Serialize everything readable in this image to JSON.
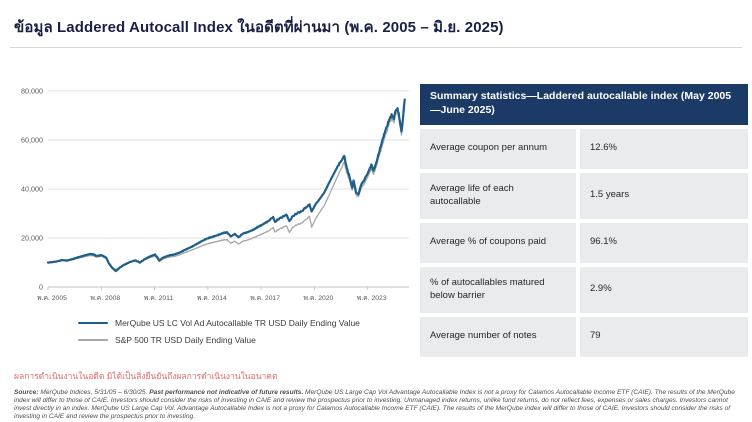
{
  "page": {
    "title": "ข้อมูล Laddered Autocall Index ในอดีตที่ผ่านมา (พ.ค. 2005 – มิ.ย. 2025)",
    "performance_note": "ผลการดำเนินงานในอดีต มิได้เป็นสิ่งยืนยันถึงผลการดำเนินงานในอนาคต"
  },
  "summary_table": {
    "header": "Summary statistics—Laddered autocallable index (May 2005 —June 2025)",
    "header_bg": "#1b3a66",
    "row_bg": "#eaebec",
    "rows": [
      {
        "label": "Average coupon per annum",
        "value": "12.6%"
      },
      {
        "label": "Average life of each autocallable",
        "value": "1.5 years"
      },
      {
        "label": "Average % of coupons paid",
        "value": "96.1%"
      },
      {
        "label": "% of autocallables matured below barrier",
        "value": "2.9%"
      },
      {
        "label": "Average number of notes",
        "value": "79"
      }
    ]
  },
  "disclaimer": {
    "source_label": "Source:",
    "source_text": " MerQube Indices, 5/31/05 – 6/30/25. ",
    "bold_statement": "Past performance not indicative of future results.",
    "body": " MerQube US Large Cap Vol Advantage Autocallable Index is not a proxy for Calamos Autocallable Income ETF (CAIE). The results of the MerQube index will differ to those of CAIE. Investors should consider the risks of investing in CAIE and review the prospectus prior to investing. Unmanaged index returns, unlike fund returns, do not reflect fees, expenses or sales charges. Investors cannot invest directly in an index. MerQube US Large Cap Vol. Advantage Autocallable Index is not a proxy for Calamos Autocallable Income ETF (CAIE). The results of the MerQube index will differ to those of CAIE. Investors should consider the risks of investing in CAIE and review the prospectus prior to investing."
  },
  "chart_data": {
    "type": "line",
    "title": "",
    "xlabel": "",
    "ylabel": "",
    "grid": "horizontal",
    "legend_position": "bottom-left",
    "x_range": [
      2005.375,
      2025.7
    ],
    "ylim": [
      0,
      80000
    ],
    "y_ticks": [
      {
        "v": 0,
        "label": "0"
      },
      {
        "v": 20000,
        "label": "20,000"
      },
      {
        "v": 40000,
        "label": "40,000"
      },
      {
        "v": 60000,
        "label": "60,000"
      },
      {
        "v": 80000,
        "label": "80,000"
      }
    ],
    "x_ticks": [
      {
        "v": 2005.375,
        "label": "พ.ค. 2005"
      },
      {
        "v": 2008.375,
        "label": "พ.ค. 2008"
      },
      {
        "v": 2011.375,
        "label": "พ.ค. 2011"
      },
      {
        "v": 2014.375,
        "label": "พ.ค. 2014"
      },
      {
        "v": 2017.375,
        "label": "พ.ค. 2017"
      },
      {
        "v": 2020.375,
        "label": "พ.ค. 2020"
      },
      {
        "v": 2023.375,
        "label": "พ.ค. 2023"
      }
    ],
    "series": [
      {
        "name": "MerQube US LC Vol Ad Autocallable TR USD Daily Ending Value",
        "color": "#1e5f8a",
        "width": 2.2,
        "points": [
          [
            2005.375,
            10000
          ],
          [
            2005.6,
            10150
          ],
          [
            2005.9,
            10450
          ],
          [
            2006.15,
            11000
          ],
          [
            2006.45,
            10800
          ],
          [
            2006.8,
            11500
          ],
          [
            2007.1,
            12200
          ],
          [
            2007.4,
            12800
          ],
          [
            2007.75,
            13500
          ],
          [
            2007.95,
            13300
          ],
          [
            2008.1,
            12700
          ],
          [
            2008.4,
            13000
          ],
          [
            2008.65,
            12000
          ],
          [
            2008.8,
            9700
          ],
          [
            2009.0,
            7700
          ],
          [
            2009.2,
            6500
          ],
          [
            2009.45,
            8100
          ],
          [
            2009.7,
            9200
          ],
          [
            2010.0,
            10200
          ],
          [
            2010.3,
            10900
          ],
          [
            2010.55,
            9950
          ],
          [
            2010.8,
            11300
          ],
          [
            2011.1,
            12400
          ],
          [
            2011.4,
            13300
          ],
          [
            2011.55,
            11900
          ],
          [
            2011.65,
            10800
          ],
          [
            2011.8,
            11800
          ],
          [
            2011.95,
            12300
          ],
          [
            2012.2,
            12900
          ],
          [
            2012.5,
            13300
          ],
          [
            2012.8,
            14100
          ],
          [
            2013.1,
            15200
          ],
          [
            2013.4,
            16200
          ],
          [
            2013.7,
            17300
          ],
          [
            2014.0,
            18600
          ],
          [
            2014.3,
            19700
          ],
          [
            2014.6,
            20400
          ],
          [
            2014.9,
            21100
          ],
          [
            2015.2,
            21900
          ],
          [
            2015.45,
            22400
          ],
          [
            2015.67,
            20600
          ],
          [
            2015.9,
            21700
          ],
          [
            2016.1,
            20300
          ],
          [
            2016.35,
            21800
          ],
          [
            2016.6,
            22400
          ],
          [
            2016.9,
            23200
          ],
          [
            2017.2,
            24500
          ],
          [
            2017.5,
            25700
          ],
          [
            2017.8,
            27000
          ],
          [
            2018.05,
            28600
          ],
          [
            2018.15,
            26600
          ],
          [
            2018.4,
            27900
          ],
          [
            2018.65,
            28900
          ],
          [
            2018.8,
            29500
          ],
          [
            2018.97,
            26900
          ],
          [
            2019.15,
            28900
          ],
          [
            2019.4,
            30100
          ],
          [
            2019.65,
            30900
          ],
          [
            2019.9,
            32500
          ],
          [
            2020.1,
            33700
          ],
          [
            2020.22,
            30800
          ],
          [
            2020.45,
            33900
          ],
          [
            2020.7,
            36200
          ],
          [
            2020.95,
            38800
          ],
          [
            2021.2,
            42500
          ],
          [
            2021.45,
            46000
          ],
          [
            2021.7,
            49500
          ],
          [
            2021.9,
            51500
          ],
          [
            2022.05,
            53500
          ],
          [
            2022.2,
            48500
          ],
          [
            2022.35,
            45000
          ],
          [
            2022.5,
            40500
          ],
          [
            2022.58,
            43500
          ],
          [
            2022.72,
            38500
          ],
          [
            2022.85,
            37800
          ],
          [
            2023.0,
            41500
          ],
          [
            2023.2,
            44000
          ],
          [
            2023.45,
            47500
          ],
          [
            2023.58,
            50000
          ],
          [
            2023.7,
            47500
          ],
          [
            2023.85,
            50500
          ],
          [
            2024.0,
            54500
          ],
          [
            2024.15,
            58500
          ],
          [
            2024.3,
            62500
          ],
          [
            2024.45,
            65500
          ],
          [
            2024.6,
            68500
          ],
          [
            2024.72,
            70500
          ],
          [
            2024.85,
            68500
          ],
          [
            2024.95,
            72000
          ],
          [
            2025.05,
            73000
          ],
          [
            2025.12,
            71000
          ],
          [
            2025.2,
            67000
          ],
          [
            2025.28,
            63500
          ],
          [
            2025.37,
            69500
          ],
          [
            2025.46,
            76500
          ]
        ]
      },
      {
        "name": "S&P 500 TR USD Daily Ending Value",
        "color": "#a6a6a6",
        "width": 1.3,
        "points": [
          [
            2005.375,
            10000
          ],
          [
            2005.6,
            10100
          ],
          [
            2005.9,
            10350
          ],
          [
            2006.15,
            10800
          ],
          [
            2006.45,
            10600
          ],
          [
            2006.8,
            11200
          ],
          [
            2007.1,
            11800
          ],
          [
            2007.4,
            12300
          ],
          [
            2007.75,
            12900
          ],
          [
            2007.95,
            12700
          ],
          [
            2008.1,
            12200
          ],
          [
            2008.4,
            12500
          ],
          [
            2008.65,
            11600
          ],
          [
            2008.8,
            9500
          ],
          [
            2009.0,
            7900
          ],
          [
            2009.2,
            7100
          ],
          [
            2009.45,
            8300
          ],
          [
            2009.7,
            9300
          ],
          [
            2010.0,
            10100
          ],
          [
            2010.3,
            10700
          ],
          [
            2010.55,
            9800
          ],
          [
            2010.8,
            11000
          ],
          [
            2011.1,
            12000
          ],
          [
            2011.4,
            12600
          ],
          [
            2011.55,
            11300
          ],
          [
            2011.65,
            10400
          ],
          [
            2011.8,
            11200
          ],
          [
            2011.95,
            11700
          ],
          [
            2012.2,
            12200
          ],
          [
            2012.5,
            12500
          ],
          [
            2012.8,
            13200
          ],
          [
            2013.1,
            14100
          ],
          [
            2013.4,
            14900
          ],
          [
            2013.7,
            15700
          ],
          [
            2014.0,
            16700
          ],
          [
            2014.3,
            17500
          ],
          [
            2014.6,
            18100
          ],
          [
            2014.9,
            18600
          ],
          [
            2015.2,
            19100
          ],
          [
            2015.45,
            19400
          ],
          [
            2015.67,
            17800
          ],
          [
            2015.9,
            18700
          ],
          [
            2016.1,
            17500
          ],
          [
            2016.35,
            18700
          ],
          [
            2016.6,
            19200
          ],
          [
            2016.9,
            19900
          ],
          [
            2017.2,
            20900
          ],
          [
            2017.5,
            21900
          ],
          [
            2017.8,
            22900
          ],
          [
            2018.05,
            24300
          ],
          [
            2018.15,
            22500
          ],
          [
            2018.4,
            23600
          ],
          [
            2018.65,
            24500
          ],
          [
            2018.8,
            25000
          ],
          [
            2018.97,
            22300
          ],
          [
            2019.15,
            24400
          ],
          [
            2019.4,
            25400
          ],
          [
            2019.65,
            26100
          ],
          [
            2019.9,
            27600
          ],
          [
            2020.1,
            28800
          ],
          [
            2020.22,
            24400
          ],
          [
            2020.45,
            28000
          ],
          [
            2020.7,
            30800
          ],
          [
            2020.95,
            33500
          ],
          [
            2021.2,
            37500
          ],
          [
            2021.45,
            41500
          ],
          [
            2021.7,
            45500
          ],
          [
            2021.9,
            48500
          ],
          [
            2022.05,
            51000
          ],
          [
            2022.2,
            46500
          ],
          [
            2022.35,
            43500
          ],
          [
            2022.5,
            39500
          ],
          [
            2022.58,
            42000
          ],
          [
            2022.72,
            37500
          ],
          [
            2022.85,
            36800
          ],
          [
            2023.0,
            40000
          ],
          [
            2023.2,
            42500
          ],
          [
            2023.45,
            46000
          ],
          [
            2023.58,
            48500
          ],
          [
            2023.7,
            46000
          ],
          [
            2023.85,
            49000
          ],
          [
            2024.0,
            53000
          ],
          [
            2024.15,
            56500
          ],
          [
            2024.3,
            60500
          ],
          [
            2024.45,
            63500
          ],
          [
            2024.6,
            67000
          ],
          [
            2024.72,
            69000
          ],
          [
            2024.85,
            67000
          ],
          [
            2024.95,
            70500
          ],
          [
            2025.05,
            71500
          ],
          [
            2025.12,
            69500
          ],
          [
            2025.2,
            65500
          ],
          [
            2025.28,
            62000
          ],
          [
            2025.37,
            68000
          ],
          [
            2025.46,
            73500
          ]
        ]
      }
    ]
  }
}
